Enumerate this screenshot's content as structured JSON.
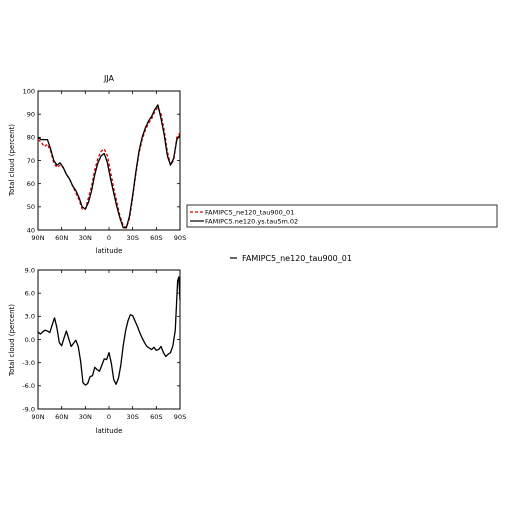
{
  "chart_data": [
    {
      "type": "line",
      "title": "JJA",
      "xlabel": "latitude",
      "ylabel": "Total cloud (percent)",
      "x_tick_labels": [
        "90N",
        "60N",
        "30N",
        "0",
        "30S",
        "60S",
        "90S"
      ],
      "x_ticks": [
        90,
        60,
        30,
        0,
        -30,
        -60,
        -90
      ],
      "xlim": [
        90,
        -90
      ],
      "ylim": [
        40,
        100
      ],
      "y_ticks": [
        40,
        50,
        60,
        70,
        80,
        90,
        100
      ],
      "y_tick_labels": [
        "40",
        "50",
        "60",
        "70",
        "80",
        "90",
        "100"
      ],
      "legend_position": "right",
      "series": [
        {
          "name": "FAMIPC5_ne120_tau900_01",
          "color": "#e00000",
          "dash": "dashed",
          "x": [
            90,
            86,
            82,
            78,
            74,
            70,
            66,
            62,
            58,
            54,
            50,
            46,
            42,
            38,
            34,
            30,
            26,
            22,
            18,
            14,
            10,
            6,
            2,
            -2,
            -6,
            -10,
            -14,
            -18,
            -22,
            -26,
            -30,
            -34,
            -38,
            -42,
            -46,
            -50,
            -54,
            -58,
            -62,
            -66,
            -70,
            -74,
            -78,
            -82,
            -86,
            -90
          ],
          "y": [
            79,
            78,
            76,
            77,
            74,
            69,
            67,
            68,
            67,
            64,
            62,
            59,
            56,
            53,
            49,
            49,
            54,
            59,
            66,
            71,
            74,
            75,
            72,
            65,
            58,
            52,
            46,
            42,
            41,
            45,
            54,
            64,
            73,
            79,
            83,
            86,
            88,
            91,
            93,
            90,
            83,
            74,
            68,
            70,
            80,
            82
          ]
        },
        {
          "name": "FAMIPC5.ne120.ys.tau5m.02",
          "color": "#000000",
          "dash": "solid",
          "x": [
            90,
            86,
            82,
            78,
            74,
            70,
            66,
            62,
            58,
            54,
            50,
            46,
            42,
            38,
            34,
            30,
            26,
            22,
            18,
            14,
            10,
            6,
            2,
            -2,
            -6,
            -10,
            -14,
            -18,
            -22,
            -26,
            -30,
            -34,
            -38,
            -42,
            -46,
            -50,
            -54,
            -58,
            -62,
            -66,
            -70,
            -74,
            -78,
            -82,
            -86,
            -90
          ],
          "y": [
            80,
            79,
            79,
            79,
            75,
            70,
            68,
            69,
            67,
            64,
            62,
            59,
            57,
            54,
            50,
            49,
            52,
            57,
            64,
            69,
            72,
            73,
            69,
            62,
            56,
            50,
            45,
            41,
            41,
            46,
            55,
            65,
            74,
            80,
            84,
            87,
            89,
            92,
            94,
            88,
            81,
            72,
            68,
            71,
            79,
            81
          ]
        }
      ]
    },
    {
      "type": "line",
      "title": "",
      "xlabel": "latitude",
      "ylabel": "Total cloud (percent)",
      "x_tick_labels": [
        "90N",
        "60N",
        "30N",
        "0",
        "30S",
        "60S",
        "90S"
      ],
      "x_ticks": [
        90,
        60,
        30,
        0,
        -30,
        -60,
        -90
      ],
      "xlim": [
        90,
        -90
      ],
      "ylim": [
        -9,
        9
      ],
      "y_ticks": [
        -9,
        -6,
        -3,
        0,
        3,
        6,
        9
      ],
      "y_tick_labels": [
        "-9.0",
        "-6.0",
        "-3.0",
        "0.0",
        "3.0",
        "6.0",
        "9.0"
      ],
      "legend_position": "right",
      "legend_entries": [
        "FAMIPC5_ne120_tau900_01"
      ],
      "series": [
        {
          "name": "FAMIPC5_ne120_tau900_01",
          "color": "#000000",
          "dash": "solid",
          "x": [
            90,
            87,
            84,
            81,
            78,
            75,
            72,
            69,
            66,
            63,
            60,
            57,
            54,
            51,
            48,
            45,
            42,
            39,
            36,
            33,
            30,
            27,
            24,
            21,
            18,
            15,
            12,
            9,
            6,
            3,
            0,
            -3,
            -6,
            -9,
            -12,
            -15,
            -18,
            -21,
            -24,
            -27,
            -30,
            -33,
            -36,
            -39,
            -42,
            -45,
            -48,
            -51,
            -54,
            -57,
            -60,
            -63,
            -66,
            -69,
            -72,
            -75,
            -78,
            -81,
            -84,
            -87,
            -88.5,
            -90
          ],
          "y": [
            1.0,
            0.7,
            1.0,
            1.2,
            1.1,
            0.9,
            1.9,
            2.8,
            1.5,
            -0.4,
            -0.8,
            0.2,
            1.1,
            0.1,
            -0.9,
            -0.5,
            -0.1,
            -0.9,
            -2.8,
            -5.6,
            -5.9,
            -5.7,
            -4.8,
            -4.7,
            -3.6,
            -3.9,
            -4.1,
            -3.3,
            -2.5,
            -2.6,
            -1.7,
            -3.1,
            -5.2,
            -5.8,
            -5.0,
            -3.3,
            -0.8,
            1.1,
            2.4,
            3.2,
            3.1,
            2.4,
            1.7,
            0.9,
            0.2,
            -0.4,
            -0.9,
            -1.1,
            -1.3,
            -1.0,
            -1.4,
            -1.3,
            -0.9,
            -1.7,
            -2.2,
            -1.9,
            -1.7,
            -0.8,
            1.2,
            7.6,
            8.1,
            5.1
          ]
        }
      ]
    }
  ]
}
